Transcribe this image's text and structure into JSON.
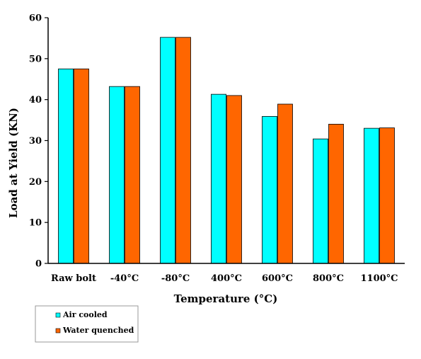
{
  "chart_data": {
    "type": "bar",
    "title": "",
    "xlabel": "Temperature (°C)",
    "ylabel": "Load at Yield (KN)",
    "categories": [
      "Raw bolt",
      "-40°C",
      "-80°C",
      "400°C",
      "600°C",
      "800°C",
      "1100°C"
    ],
    "series": [
      {
        "name": "Air cooled",
        "color": "#00FFFF",
        "values": [
          47.5,
          43.2,
          55.2,
          41.3,
          35.9,
          30.4,
          33.0
        ]
      },
      {
        "name": "Water quenched",
        "color": "#FF6600",
        "values": [
          47.5,
          43.2,
          55.2,
          41.0,
          38.9,
          34.0,
          33.1
        ]
      }
    ],
    "ylim": [
      0,
      60
    ],
    "yticks": [
      0,
      10,
      20,
      30,
      40,
      50,
      60
    ],
    "grid": false,
    "legend_position": "bottom-left"
  }
}
